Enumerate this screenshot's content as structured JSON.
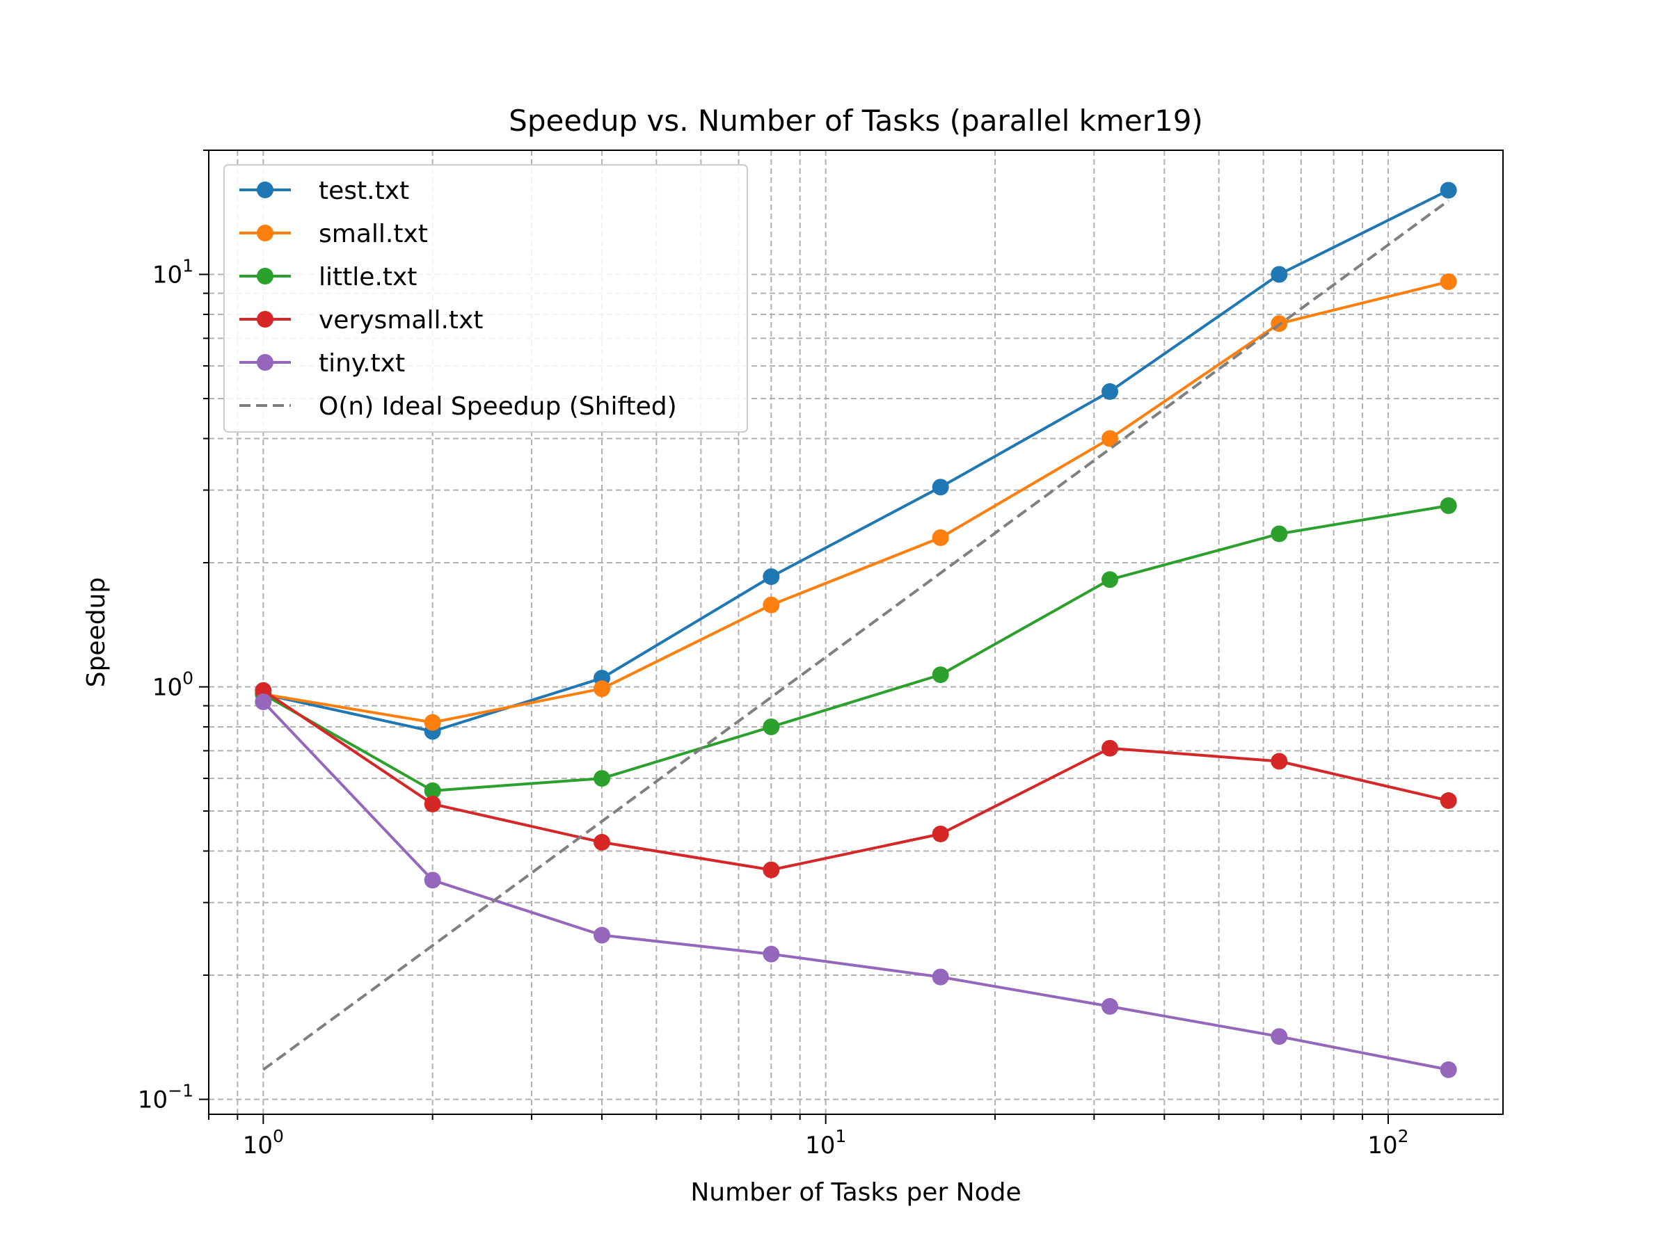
{
  "chart_data": {
    "type": "line",
    "title": "Speedup vs. Number of Tasks (parallel kmer19)",
    "xlabel": "Number of Tasks per Node",
    "ylabel": "Speedup",
    "xscale": "log",
    "yscale": "log",
    "xlim": [
      0.8,
      160
    ],
    "ylim": [
      0.092,
      20
    ],
    "grid": "major and minor, dashed",
    "legend_position": "top-left",
    "x_ticks": [
      {
        "value": 1,
        "base": "10",
        "exp": "0"
      },
      {
        "value": 10,
        "base": "10",
        "exp": "1"
      },
      {
        "value": 100,
        "base": "10",
        "exp": "2"
      }
    ],
    "y_ticks": [
      {
        "value": 0.1,
        "base": "10",
        "exp": "−1"
      },
      {
        "value": 1,
        "base": "10",
        "exp": "0"
      },
      {
        "value": 10,
        "base": "10",
        "exp": "1"
      }
    ],
    "x": [
      1,
      2,
      4,
      8,
      16,
      32,
      64,
      128
    ],
    "series": [
      {
        "name": "test.txt",
        "color": "#1f77b4",
        "style": "solid",
        "marker": "circle",
        "values": [
          0.96,
          0.78,
          1.05,
          1.85,
          3.05,
          5.2,
          10.0,
          16.0
        ]
      },
      {
        "name": "small.txt",
        "color": "#ff7f0e",
        "style": "solid",
        "marker": "circle",
        "values": [
          0.96,
          0.82,
          0.99,
          1.58,
          2.3,
          4.0,
          7.6,
          9.6
        ]
      },
      {
        "name": "little.txt",
        "color": "#2ca02c",
        "style": "solid",
        "marker": "circle",
        "values": [
          0.96,
          0.56,
          0.6,
          0.8,
          1.07,
          1.82,
          2.35,
          2.75
        ]
      },
      {
        "name": "verysmall.txt",
        "color": "#d62728",
        "style": "solid",
        "marker": "circle",
        "values": [
          0.98,
          0.52,
          0.42,
          0.36,
          0.44,
          0.71,
          0.66,
          0.53
        ]
      },
      {
        "name": "tiny.txt",
        "color": "#9467bd",
        "style": "solid",
        "marker": "circle",
        "values": [
          0.92,
          0.34,
          0.25,
          0.225,
          0.198,
          0.168,
          0.142,
          0.118
        ]
      },
      {
        "name": "O(n) Ideal Speedup (Shifted)",
        "color": "#7f7f7f",
        "style": "dashed",
        "marker": "none",
        "x": [
          1,
          128
        ],
        "values": [
          0.118,
          15.1
        ]
      }
    ]
  }
}
